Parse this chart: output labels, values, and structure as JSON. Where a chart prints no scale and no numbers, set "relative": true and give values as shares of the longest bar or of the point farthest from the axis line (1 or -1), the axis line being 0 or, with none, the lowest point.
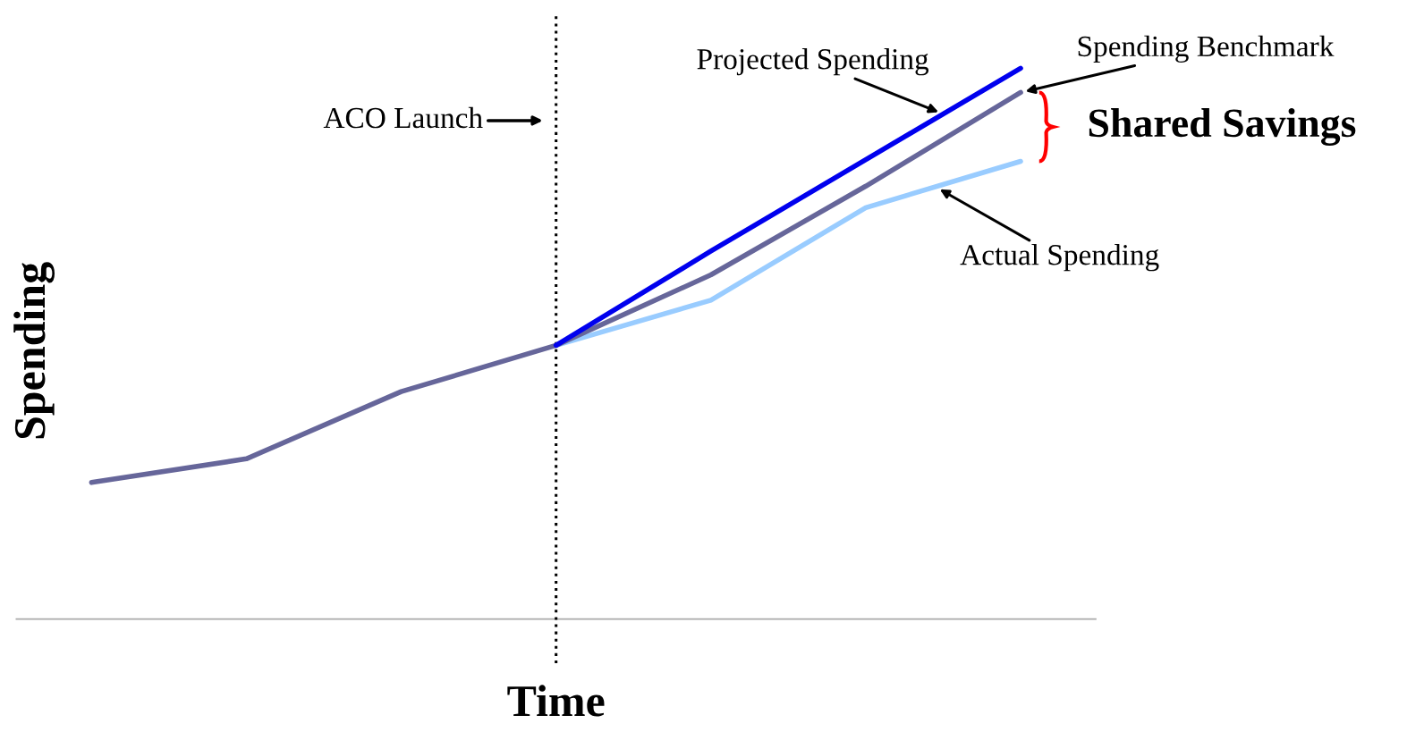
{
  "chart_data": {
    "type": "line",
    "relative": true,
    "xlabel": "Time",
    "ylabel": "Spending",
    "categories": [
      null,
      null,
      null,
      null,
      null,
      null,
      null
    ],
    "series": [
      {
        "name": "Projected Spending",
        "color": "#0000ee",
        "values": [
          null,
          null,
          null,
          0.497,
          0.668,
          0.834,
          1
        ]
      },
      {
        "name": "Spending Benchmark",
        "color": "#66669a",
        "values": [
          0.248,
          0.291,
          0.413,
          0.497,
          0.625,
          0.786,
          0.956
        ]
      },
      {
        "name": "Actual Spending",
        "color": "#99ccff",
        "values": [
          null,
          null,
          null,
          0.497,
          0.579,
          0.747,
          0.831
        ]
      }
    ],
    "annotations": [
      "ACO Launch",
      "Shared Savings"
    ],
    "legend": false,
    "grid": false,
    "marker": "none",
    "line_style": "solid"
  }
}
